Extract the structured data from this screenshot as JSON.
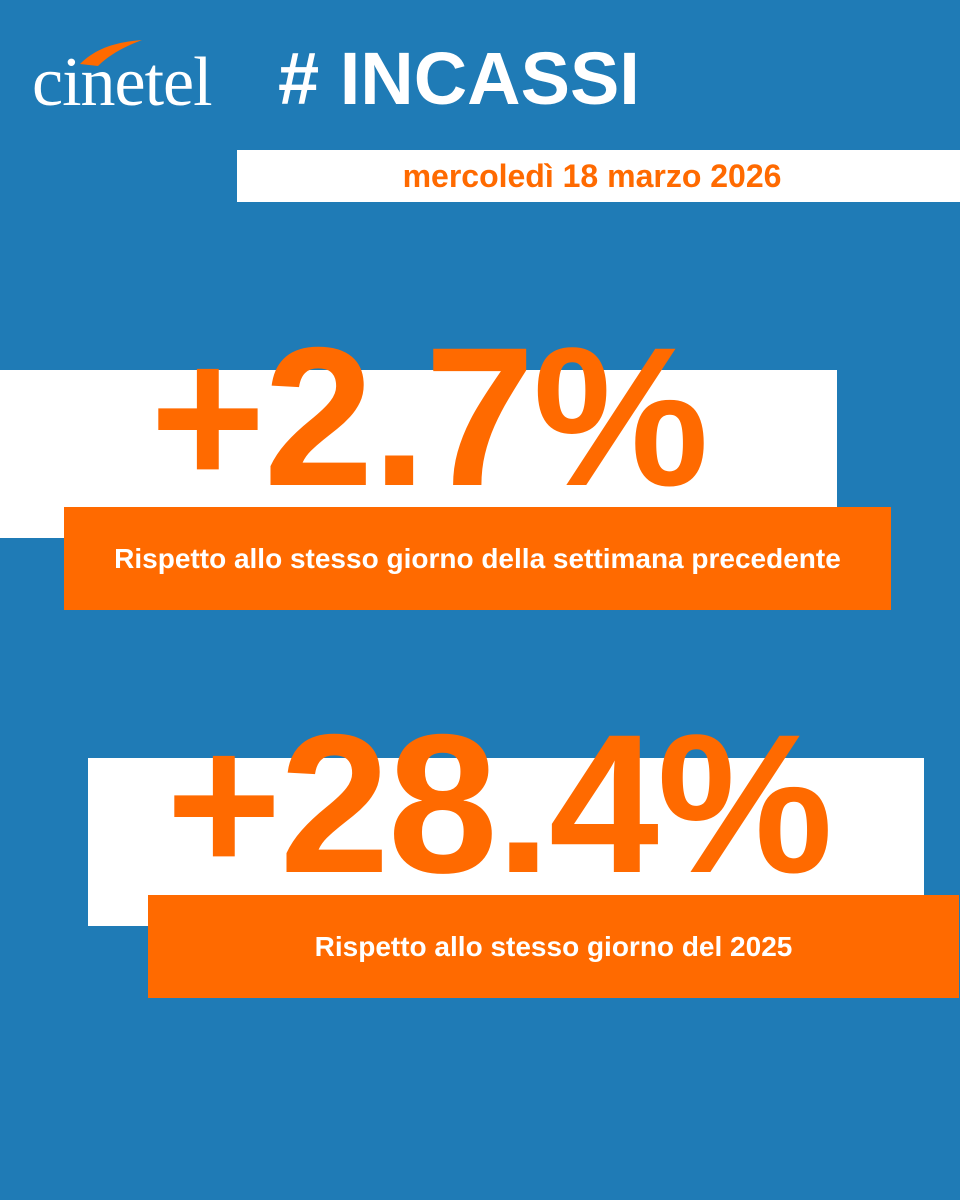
{
  "header": {
    "brand": "cinetel",
    "hashtag": "# INCASSI",
    "date": "mercoledì 18 marzo 2026"
  },
  "stats": [
    {
      "value": "+2.7%",
      "caption": "Rispetto allo stesso giorno della settimana precedente"
    },
    {
      "value": "+28.4%",
      "caption": "Rispetto allo stesso giorno del 2025"
    }
  ],
  "colors": {
    "background": "#1f7bb6",
    "accent": "#ff6a00",
    "panel": "#ffffff"
  }
}
